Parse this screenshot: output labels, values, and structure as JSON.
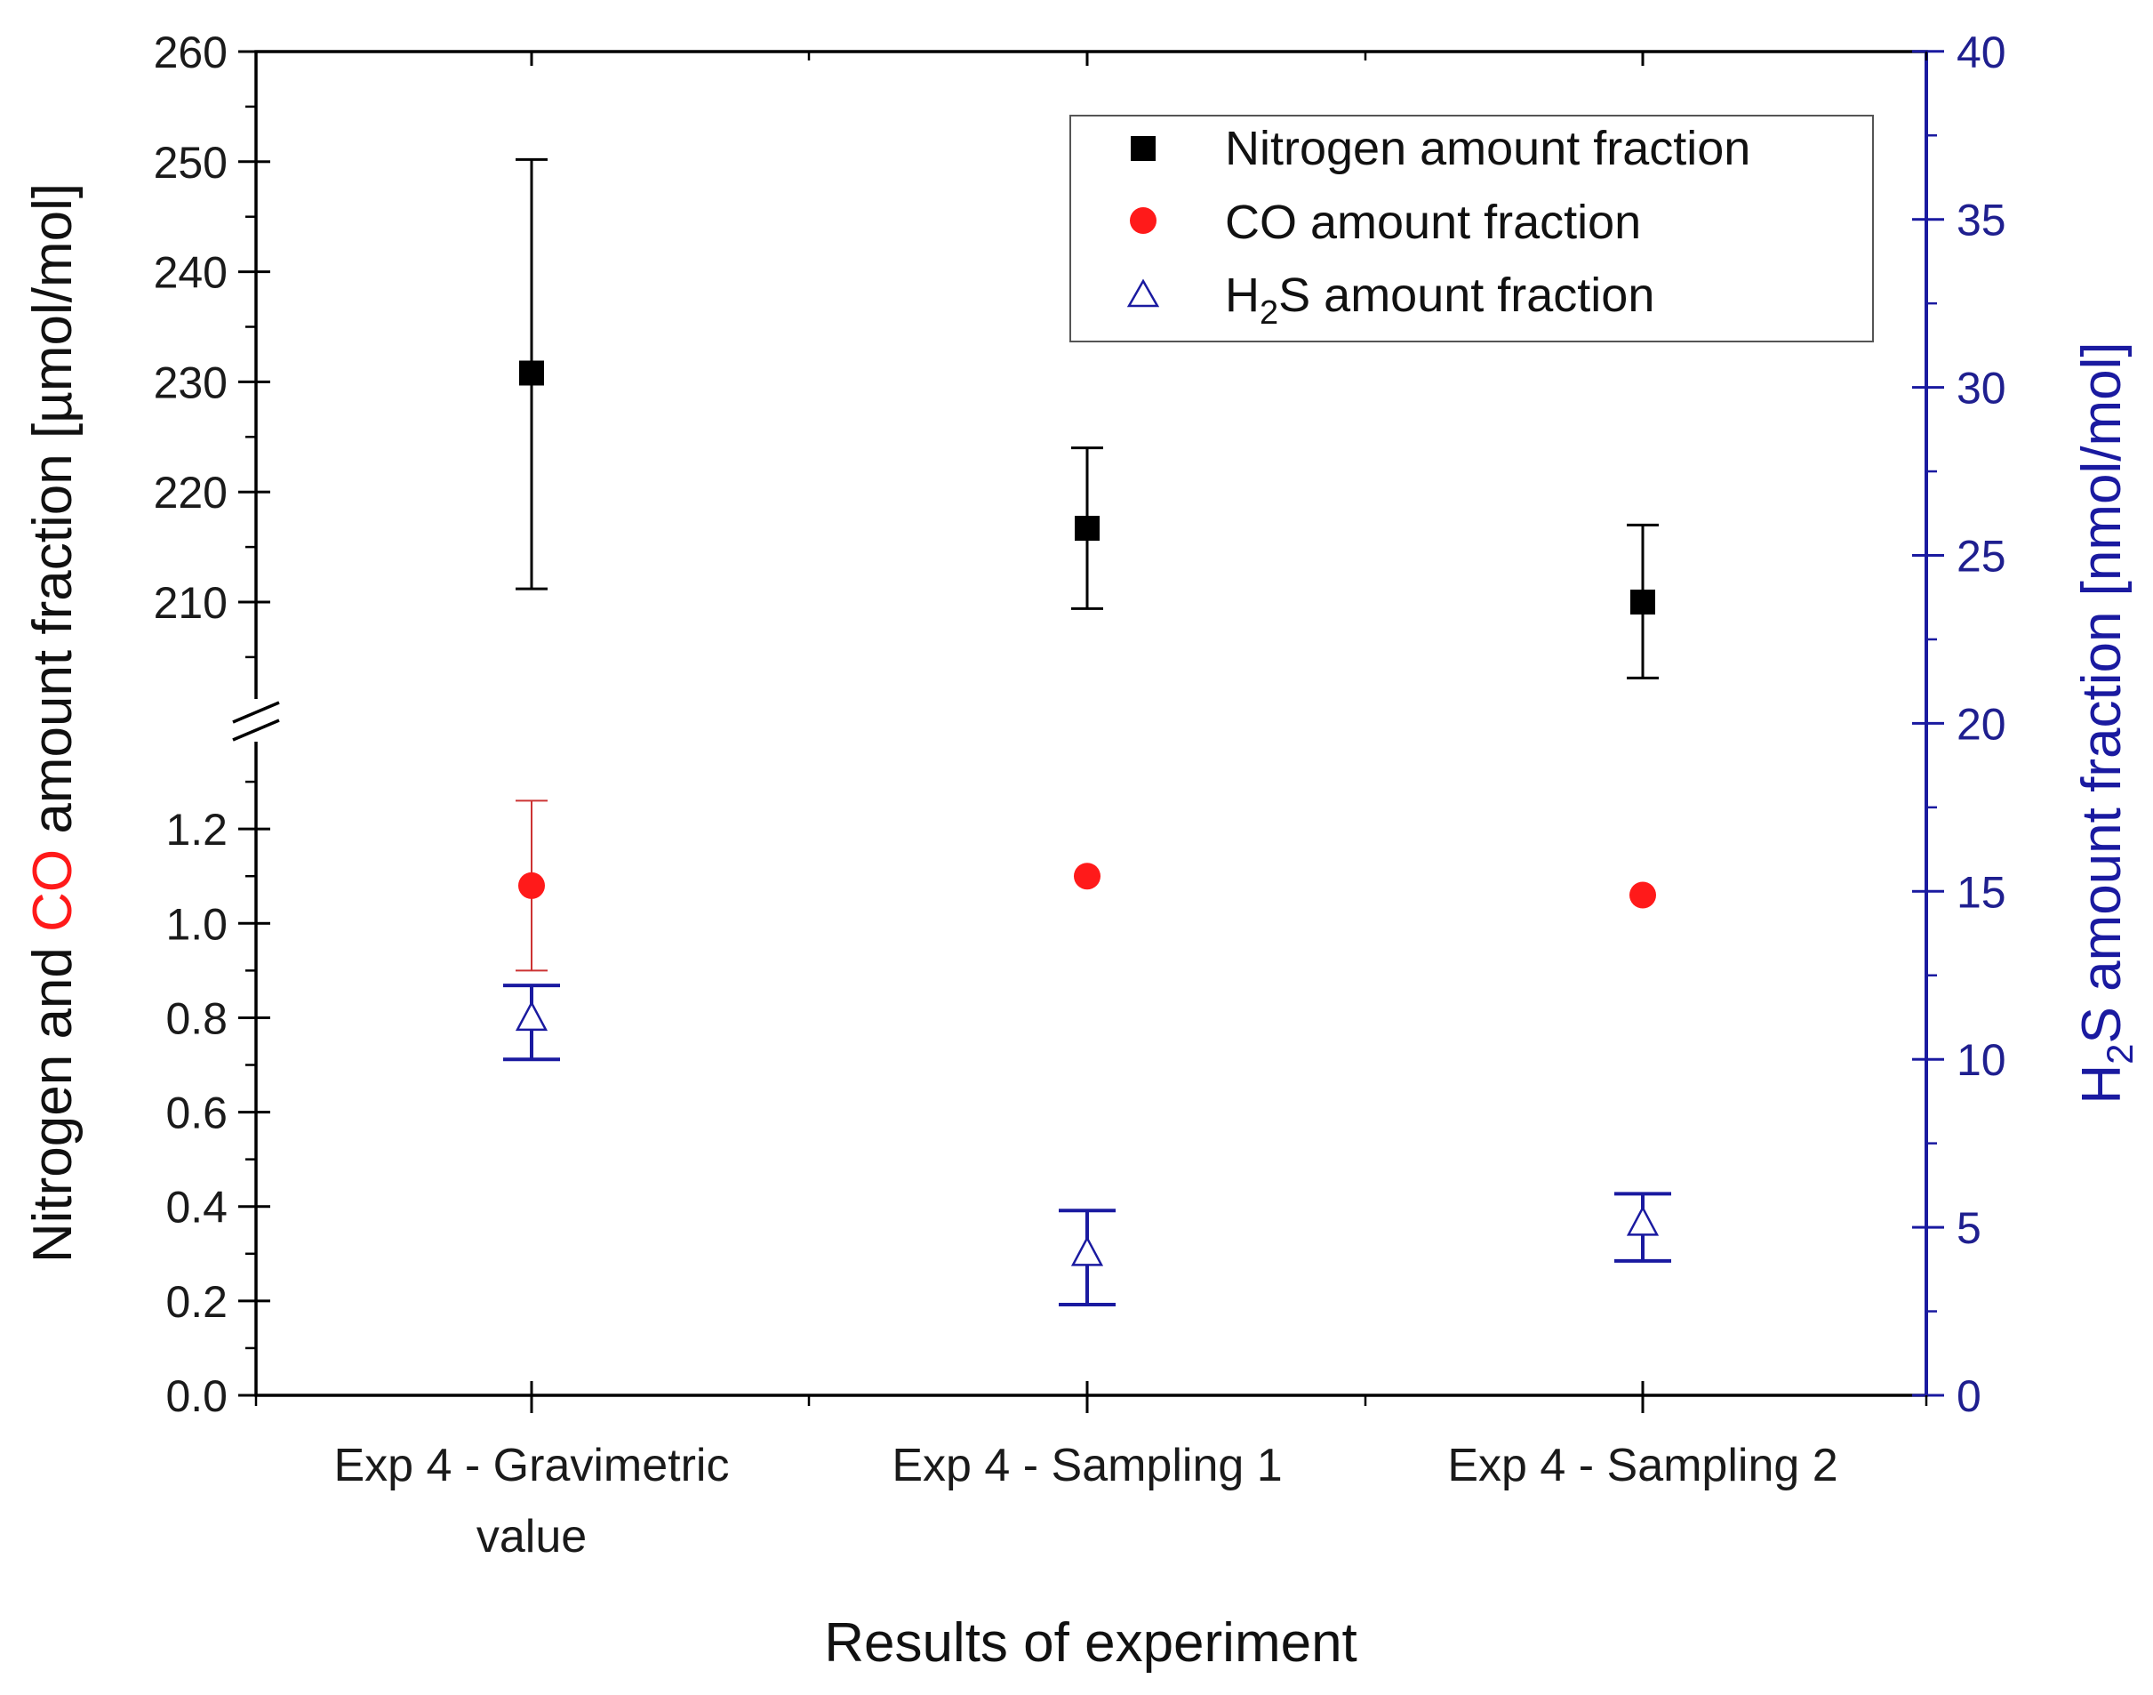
{
  "chart_data": {
    "type": "scatter",
    "xlabel": "Results of experiment",
    "categories": [
      [
        "Exp 4 - Gravimetric",
        "value"
      ],
      [
        "Exp 4 - Sampling 1"
      ],
      [
        "Exp 4 - Sampling 2"
      ]
    ],
    "ylabel_left": {
      "part1": "Nitrogen and ",
      "part2": "CO",
      "part3": " amount fraction [µmol/mol]"
    },
    "ylabel_right": {
      "prefix": "H",
      "sub": "2",
      "suffix": "S amount fraction [nmol/mol]"
    },
    "y_left_upper": {
      "ylim": [
        200,
        260
      ],
      "ticks": [
        210,
        220,
        230,
        240,
        250,
        260
      ]
    },
    "y_left_lower": {
      "ylim": [
        0,
        1.4
      ],
      "ticks": [
        "0.0",
        "0.2",
        "0.4",
        "0.6",
        "0.8",
        "1.0",
        "1.2"
      ]
    },
    "y_right": {
      "ylim": [
        0,
        40
      ],
      "ticks": [
        0,
        5,
        10,
        15,
        20,
        25,
        30,
        35,
        40
      ]
    },
    "series": [
      {
        "name": "Nitrogen amount fraction",
        "axis": "left-upper",
        "marker": "square",
        "color": "#000000",
        "values": [
          230.8,
          216.7,
          210.0
        ],
        "error_low": [
          211.2,
          209.4,
          203.1
        ],
        "error_high": [
          250.2,
          224.0,
          217.0
        ]
      },
      {
        "name": "CO amount fraction",
        "axis": "left-lower",
        "marker": "circle",
        "color": "#ff1a1a",
        "values": [
          1.08,
          1.1,
          1.06
        ],
        "error_low": [
          0.9,
          null,
          null
        ],
        "error_high": [
          1.26,
          null,
          null
        ]
      },
      {
        "name": "H2S amount fraction",
        "name_prefix": "H",
        "name_sub": "2",
        "name_suffix": "S amount fraction",
        "axis": "right",
        "marker": "triangle-open",
        "color": "#1a1aa0",
        "values": [
          11.2,
          4.2,
          5.1
        ],
        "error_low": [
          10.0,
          2.7,
          4.0
        ],
        "error_high": [
          12.2,
          5.5,
          6.0
        ]
      }
    ],
    "legend_position": "top-right"
  }
}
